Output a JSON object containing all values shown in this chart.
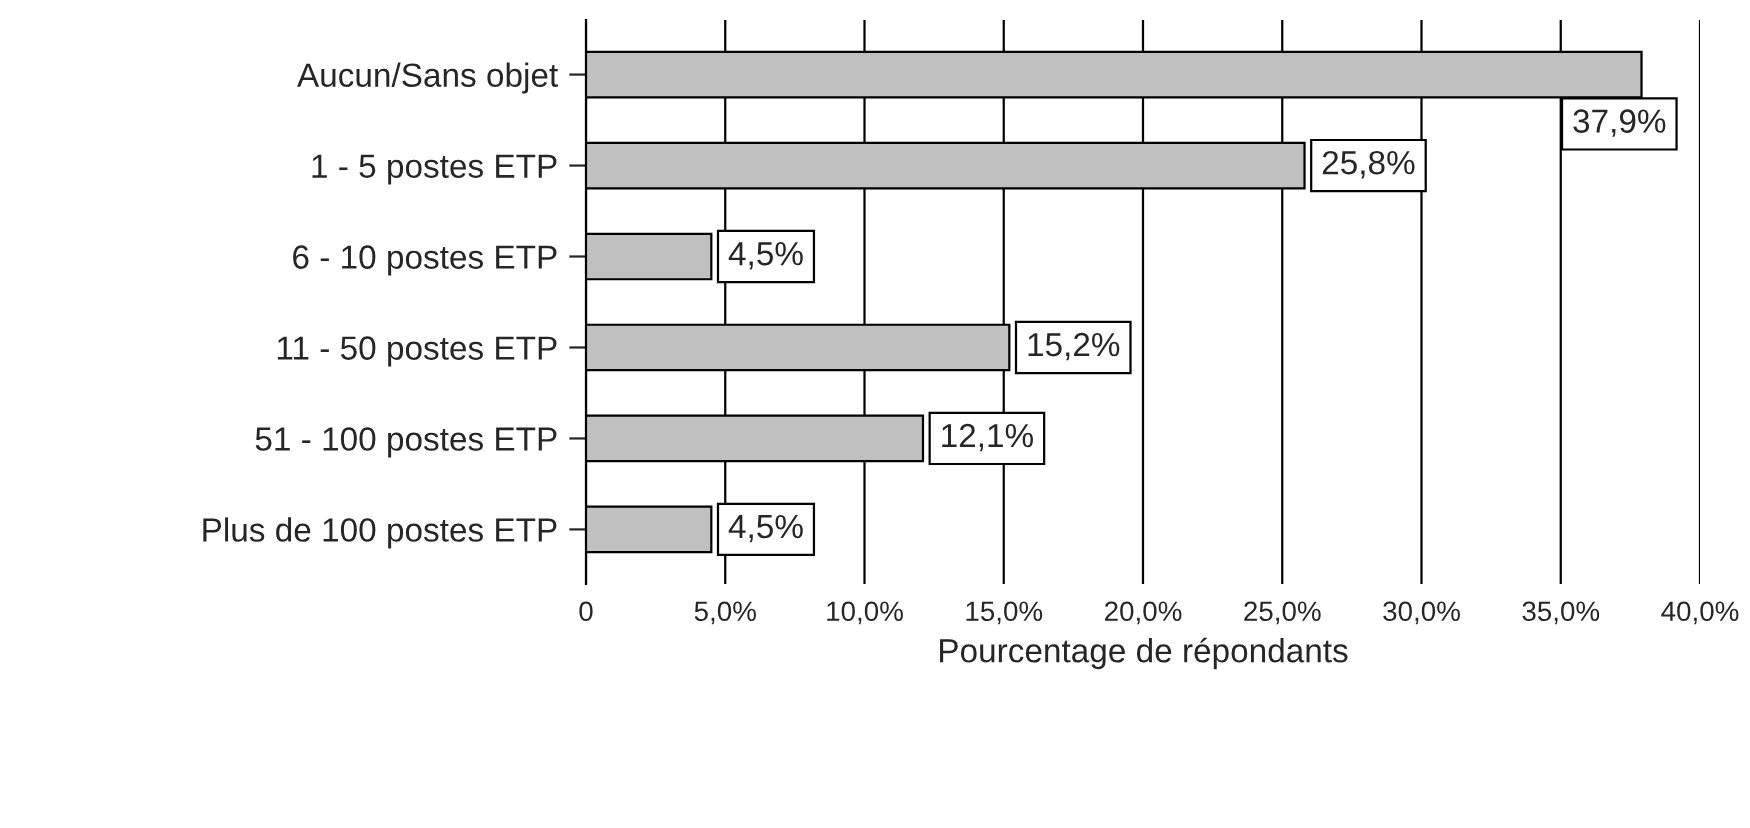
{
  "chart_data": {
    "type": "bar",
    "orientation": "horizontal",
    "xlabel": "Pourcentage de répondants",
    "categories": [
      "Aucun/Sans objet",
      "1 - 5 postes ETP",
      "6 - 10 postes ETP",
      "11 - 50 postes ETP",
      "51 - 100 postes ETP",
      "Plus de 100 postes ETP"
    ],
    "values": [
      37.9,
      25.8,
      4.5,
      15.2,
      12.1,
      4.5
    ],
    "value_labels": [
      "37,9%",
      "25,8%",
      "4,5%",
      "15,2%",
      "12,1%",
      "4,5%"
    ],
    "color": "#c0c0c0",
    "xlim": [
      0,
      40
    ],
    "xticks": [
      0,
      {
        "value": 5,
        "label": "5,0%"
      },
      {
        "value": 10,
        "label": "10,0%"
      },
      {
        "value": 15,
        "label": "15,0%"
      },
      {
        "value": 20,
        "label": "20,0%"
      },
      {
        "value": 25,
        "label": "25,0%"
      },
      {
        "value": 30,
        "label": "30,0%"
      },
      {
        "value": 35,
        "label": "35,0%"
      },
      {
        "value": 40,
        "label": "40,0%"
      }
    ],
    "grid": "x"
  }
}
